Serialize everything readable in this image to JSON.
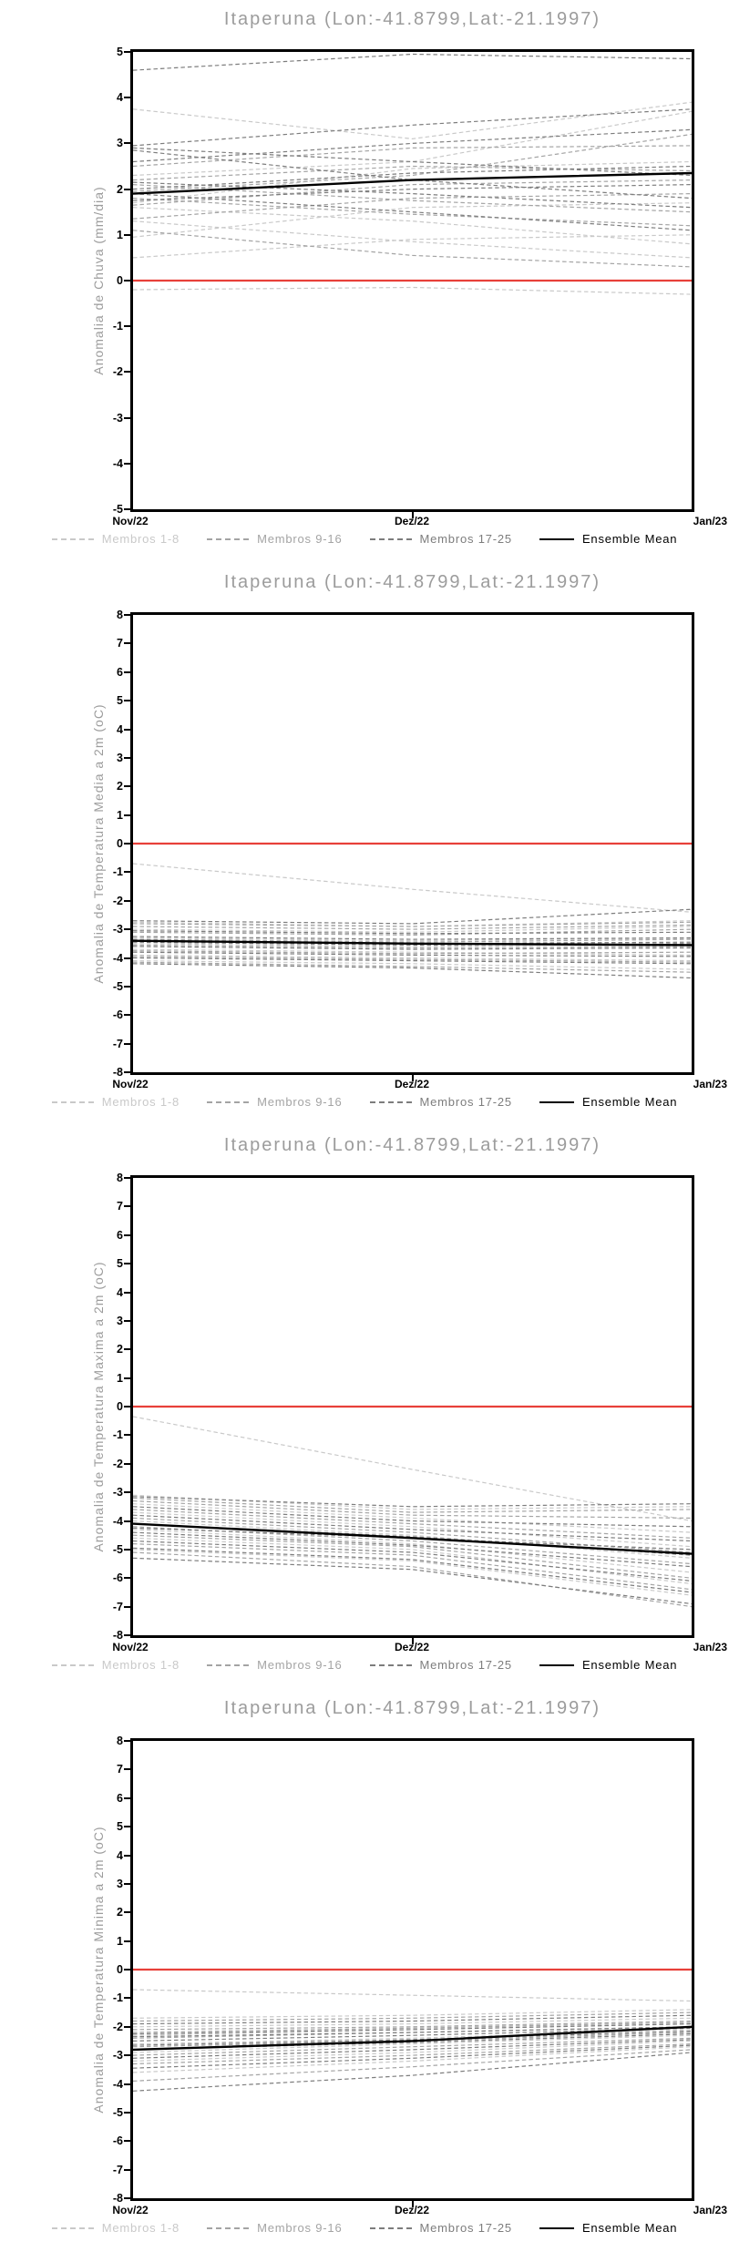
{
  "page": {
    "background": "#ffffff"
  },
  "chart_data": [
    {
      "type": "line",
      "title": "Itaperuna (Lon:-41.8799,Lat:-21.1997)",
      "ylabel": "Anomalia de Chuva (mm/dia)",
      "ylim": [
        -5,
        5
      ],
      "ytick_step": 1,
      "x_categories": [
        "Nov/22",
        "Dez/22",
        "Jan/23"
      ],
      "grid": false,
      "legend_position": "bottom",
      "zero_line": {
        "value": 0,
        "color": "#e8403a"
      },
      "legend": [
        {
          "label": "Membros 1-8",
          "color": "#c9c9c9",
          "style": "dashed"
        },
        {
          "label": "Membros 9-16",
          "color": "#a4a4a4",
          "style": "dashed"
        },
        {
          "label": "Membros 17-25",
          "color": "#7d7d7d",
          "style": "dashed"
        },
        {
          "label": "Ensemble Mean",
          "color": "#000000",
          "style": "solid"
        }
      ],
      "ensemble_mean": [
        1.9,
        2.2,
        2.35
      ],
      "members": [
        {
          "group": 0,
          "values": [
            3.75,
            3.1,
            3.9
          ]
        },
        {
          "group": 0,
          "values": [
            2.3,
            2.6,
            3.7
          ]
        },
        {
          "group": 0,
          "values": [
            1.6,
            1.3,
            0.8
          ]
        },
        {
          "group": 0,
          "values": [
            1.3,
            0.85,
            0.5
          ]
        },
        {
          "group": 0,
          "values": [
            0.95,
            1.6,
            1.7
          ]
        },
        {
          "group": 0,
          "values": [
            0.5,
            0.9,
            1.0
          ]
        },
        {
          "group": 0,
          "values": [
            -0.2,
            -0.15,
            -0.3
          ]
        },
        {
          "group": 0,
          "values": [
            1.7,
            2.45,
            2.6
          ]
        },
        {
          "group": 1,
          "values": [
            2.2,
            2.5,
            2.4
          ]
        },
        {
          "group": 1,
          "values": [
            2.1,
            1.75,
            1.5
          ]
        },
        {
          "group": 1,
          "values": [
            1.95,
            2.3,
            3.2
          ]
        },
        {
          "group": 1,
          "values": [
            1.8,
            1.45,
            1.2
          ]
        },
        {
          "group": 1,
          "values": [
            1.65,
            2.1,
            2.2
          ]
        },
        {
          "group": 1,
          "values": [
            1.35,
            1.8,
            1.9
          ]
        },
        {
          "group": 1,
          "values": [
            1.1,
            0.55,
            0.3
          ]
        },
        {
          "group": 1,
          "values": [
            2.5,
            2.9,
            2.95
          ]
        },
        {
          "group": 2,
          "values": [
            4.6,
            4.95,
            4.85
          ]
        },
        {
          "group": 2,
          "values": [
            2.95,
            3.4,
            3.75
          ]
        },
        {
          "group": 2,
          "values": [
            2.9,
            2.6,
            2.3
          ]
        },
        {
          "group": 2,
          "values": [
            2.85,
            2.2,
            1.8
          ]
        },
        {
          "group": 2,
          "values": [
            2.6,
            3.0,
            3.3
          ]
        },
        {
          "group": 2,
          "values": [
            2.15,
            1.9,
            1.6
          ]
        },
        {
          "group": 2,
          "values": [
            2.0,
            2.35,
            2.5
          ]
        },
        {
          "group": 2,
          "values": [
            1.9,
            1.5,
            1.1
          ]
        },
        {
          "group": 2,
          "values": [
            1.75,
            2.0,
            2.1
          ]
        }
      ]
    },
    {
      "type": "line",
      "title": "Itaperuna (Lon:-41.8799,Lat:-21.1997)",
      "ylabel": "Anomalia de Temperatura Media a 2m (oC)",
      "ylim": [
        -8,
        8
      ],
      "ytick_step": 1,
      "x_categories": [
        "Nov/22",
        "Dez/22",
        "Jan/23"
      ],
      "grid": false,
      "legend_position": "bottom",
      "zero_line": {
        "value": 0,
        "color": "#e8403a"
      },
      "legend": [
        {
          "label": "Membros 1-8",
          "color": "#c9c9c9",
          "style": "dashed"
        },
        {
          "label": "Membros 9-16",
          "color": "#a4a4a4",
          "style": "dashed"
        },
        {
          "label": "Membros 17-25",
          "color": "#7d7d7d",
          "style": "dashed"
        },
        {
          "label": "Ensemble Mean",
          "color": "#000000",
          "style": "solid"
        }
      ],
      "ensemble_mean": [
        -3.4,
        -3.5,
        -3.55
      ],
      "members": [
        {
          "group": 0,
          "values": [
            -0.7,
            -1.6,
            -2.4
          ]
        },
        {
          "group": 0,
          "values": [
            -2.75,
            -2.9,
            -2.7
          ]
        },
        {
          "group": 0,
          "values": [
            -3.0,
            -3.1,
            -2.9
          ]
        },
        {
          "group": 0,
          "values": [
            -3.3,
            -3.4,
            -3.3
          ]
        },
        {
          "group": 0,
          "values": [
            -3.5,
            -3.6,
            -3.5
          ]
        },
        {
          "group": 0,
          "values": [
            -3.7,
            -3.8,
            -3.9
          ]
        },
        {
          "group": 0,
          "values": [
            -3.9,
            -4.0,
            -4.1
          ]
        },
        {
          "group": 0,
          "values": [
            -4.1,
            -4.2,
            -4.4
          ]
        },
        {
          "group": 1,
          "values": [
            -2.8,
            -2.9,
            -2.75
          ]
        },
        {
          "group": 1,
          "values": [
            -3.1,
            -3.2,
            -3.0
          ]
        },
        {
          "group": 1,
          "values": [
            -3.35,
            -3.45,
            -3.35
          ]
        },
        {
          "group": 1,
          "values": [
            -3.55,
            -3.65,
            -3.6
          ]
        },
        {
          "group": 1,
          "values": [
            -3.75,
            -3.85,
            -3.8
          ]
        },
        {
          "group": 1,
          "values": [
            -3.95,
            -4.05,
            -4.15
          ]
        },
        {
          "group": 1,
          "values": [
            -4.15,
            -4.3,
            -4.5
          ]
        },
        {
          "group": 1,
          "values": [
            -2.9,
            -3.0,
            -2.85
          ]
        },
        {
          "group": 2,
          "values": [
            -2.7,
            -2.8,
            -2.3
          ]
        },
        {
          "group": 2,
          "values": [
            -3.05,
            -3.15,
            -3.1
          ]
        },
        {
          "group": 2,
          "values": [
            -3.25,
            -3.35,
            -3.3
          ]
        },
        {
          "group": 2,
          "values": [
            -3.45,
            -3.55,
            -3.5
          ]
        },
        {
          "group": 2,
          "values": [
            -3.6,
            -3.7,
            -3.65
          ]
        },
        {
          "group": 2,
          "values": [
            -3.8,
            -3.9,
            -3.95
          ]
        },
        {
          "group": 2,
          "values": [
            -4.0,
            -4.1,
            -4.2
          ]
        },
        {
          "group": 2,
          "values": [
            -4.2,
            -4.35,
            -4.7
          ]
        },
        {
          "group": 2,
          "values": [
            -3.4,
            -3.5,
            -3.45
          ]
        }
      ]
    },
    {
      "type": "line",
      "title": "Itaperuna (Lon:-41.8799,Lat:-21.1997)",
      "ylabel": "Anomalia de Temperatura Maxima a 2m (oC)",
      "ylim": [
        -8,
        8
      ],
      "ytick_step": 1,
      "x_categories": [
        "Nov/22",
        "Dez/22",
        "Jan/23"
      ],
      "grid": false,
      "legend_position": "bottom",
      "zero_line": {
        "value": 0,
        "color": "#e8403a"
      },
      "legend": [
        {
          "label": "Membros 1-8",
          "color": "#c9c9c9",
          "style": "dashed"
        },
        {
          "label": "Membros 9-16",
          "color": "#a4a4a4",
          "style": "dashed"
        },
        {
          "label": "Membros 17-25",
          "color": "#7d7d7d",
          "style": "dashed"
        },
        {
          "label": "Ensemble Mean",
          "color": "#000000",
          "style": "solid"
        }
      ],
      "ensemble_mean": [
        -4.1,
        -4.6,
        -5.15
      ],
      "members": [
        {
          "group": 0,
          "values": [
            -0.35,
            -2.2,
            -4.0
          ]
        },
        {
          "group": 0,
          "values": [
            -3.1,
            -3.6,
            -3.5
          ]
        },
        {
          "group": 0,
          "values": [
            -3.4,
            -3.9,
            -4.4
          ]
        },
        {
          "group": 0,
          "values": [
            -3.7,
            -4.2,
            -4.9
          ]
        },
        {
          "group": 0,
          "values": [
            -4.0,
            -4.5,
            -5.3
          ]
        },
        {
          "group": 0,
          "values": [
            -4.3,
            -4.8,
            -5.8
          ]
        },
        {
          "group": 0,
          "values": [
            -4.6,
            -5.0,
            -6.2
          ]
        },
        {
          "group": 0,
          "values": [
            -5.0,
            -5.4,
            -6.6
          ]
        },
        {
          "group": 1,
          "values": [
            -3.3,
            -3.8,
            -3.9
          ]
        },
        {
          "group": 1,
          "values": [
            -3.6,
            -4.1,
            -4.6
          ]
        },
        {
          "group": 1,
          "values": [
            -3.9,
            -4.4,
            -5.1
          ]
        },
        {
          "group": 1,
          "values": [
            -4.2,
            -4.7,
            -5.5
          ]
        },
        {
          "group": 1,
          "values": [
            -4.5,
            -4.9,
            -6.0
          ]
        },
        {
          "group": 1,
          "values": [
            -4.8,
            -5.2,
            -6.4
          ]
        },
        {
          "group": 1,
          "values": [
            -5.1,
            -5.6,
            -7.0
          ]
        },
        {
          "group": 1,
          "values": [
            -3.2,
            -3.7,
            -3.6
          ]
        },
        {
          "group": 2,
          "values": [
            -3.15,
            -3.5,
            -3.4
          ]
        },
        {
          "group": 2,
          "values": [
            -3.5,
            -4.0,
            -4.2
          ]
        },
        {
          "group": 2,
          "values": [
            -3.8,
            -4.3,
            -4.7
          ]
        },
        {
          "group": 2,
          "values": [
            -4.1,
            -4.55,
            -5.2
          ]
        },
        {
          "group": 2,
          "values": [
            -4.4,
            -4.85,
            -5.6
          ]
        },
        {
          "group": 2,
          "values": [
            -4.7,
            -5.1,
            -6.1
          ]
        },
        {
          "group": 2,
          "values": [
            -4.95,
            -5.35,
            -6.5
          ]
        },
        {
          "group": 2,
          "values": [
            -5.3,
            -5.7,
            -6.9
          ]
        },
        {
          "group": 2,
          "values": [
            -4.25,
            -4.6,
            -5.0
          ]
        }
      ]
    },
    {
      "type": "line",
      "title": "Itaperuna (Lon:-41.8799,Lat:-21.1997)",
      "ylabel": "Anomalia de Temperatura Minima a 2m (oC)",
      "ylim": [
        -8,
        8
      ],
      "ytick_step": 1,
      "x_categories": [
        "Nov/22",
        "Dez/22",
        "Jan/23"
      ],
      "grid": false,
      "legend_position": "bottom",
      "zero_line": {
        "value": 0,
        "color": "#e8403a"
      },
      "legend": [
        {
          "label": "Membros 1-8",
          "color": "#c9c9c9",
          "style": "dashed"
        },
        {
          "label": "Membros 9-16",
          "color": "#a4a4a4",
          "style": "dashed"
        },
        {
          "label": "Membros 17-25",
          "color": "#7d7d7d",
          "style": "dashed"
        },
        {
          "label": "Ensemble Mean",
          "color": "#000000",
          "style": "solid"
        }
      ],
      "ensemble_mean": [
        -2.8,
        -2.5,
        -2.0
      ],
      "members": [
        {
          "group": 0,
          "values": [
            -0.7,
            -0.9,
            -1.1
          ]
        },
        {
          "group": 0,
          "values": [
            -1.7,
            -1.6,
            -1.4
          ]
        },
        {
          "group": 0,
          "values": [
            -2.0,
            -1.9,
            -1.7
          ]
        },
        {
          "group": 0,
          "values": [
            -2.3,
            -2.1,
            -1.9
          ]
        },
        {
          "group": 0,
          "values": [
            -2.6,
            -2.4,
            -2.1
          ]
        },
        {
          "group": 0,
          "values": [
            -2.9,
            -2.6,
            -2.3
          ]
        },
        {
          "group": 0,
          "values": [
            -3.2,
            -2.9,
            -2.5
          ]
        },
        {
          "group": 0,
          "values": [
            -3.6,
            -3.2,
            -2.7
          ]
        },
        {
          "group": 1,
          "values": [
            -1.8,
            -1.7,
            -1.5
          ]
        },
        {
          "group": 1,
          "values": [
            -2.1,
            -2.0,
            -1.8
          ]
        },
        {
          "group": 1,
          "values": [
            -2.4,
            -2.2,
            -2.0
          ]
        },
        {
          "group": 1,
          "values": [
            -2.7,
            -2.5,
            -2.2
          ]
        },
        {
          "group": 1,
          "values": [
            -3.0,
            -2.7,
            -2.4
          ]
        },
        {
          "group": 1,
          "values": [
            -3.3,
            -3.0,
            -2.6
          ]
        },
        {
          "group": 1,
          "values": [
            -3.9,
            -3.4,
            -2.8
          ]
        },
        {
          "group": 1,
          "values": [
            -2.2,
            -2.05,
            -1.85
          ]
        },
        {
          "group": 2,
          "values": [
            -1.9,
            -1.8,
            -1.6
          ]
        },
        {
          "group": 2,
          "values": [
            -2.25,
            -2.1,
            -1.9
          ]
        },
        {
          "group": 2,
          "values": [
            -2.5,
            -2.3,
            -2.05
          ]
        },
        {
          "group": 2,
          "values": [
            -2.8,
            -2.55,
            -2.25
          ]
        },
        {
          "group": 2,
          "values": [
            -3.1,
            -2.8,
            -2.45
          ]
        },
        {
          "group": 2,
          "values": [
            -3.45,
            -3.1,
            -2.65
          ]
        },
        {
          "group": 2,
          "values": [
            -4.25,
            -3.7,
            -2.9
          ]
        },
        {
          "group": 2,
          "values": [
            -2.35,
            -2.2,
            -2.0
          ]
        },
        {
          "group": 2,
          "values": [
            -2.65,
            -2.45,
            -2.15
          ]
        }
      ]
    }
  ]
}
